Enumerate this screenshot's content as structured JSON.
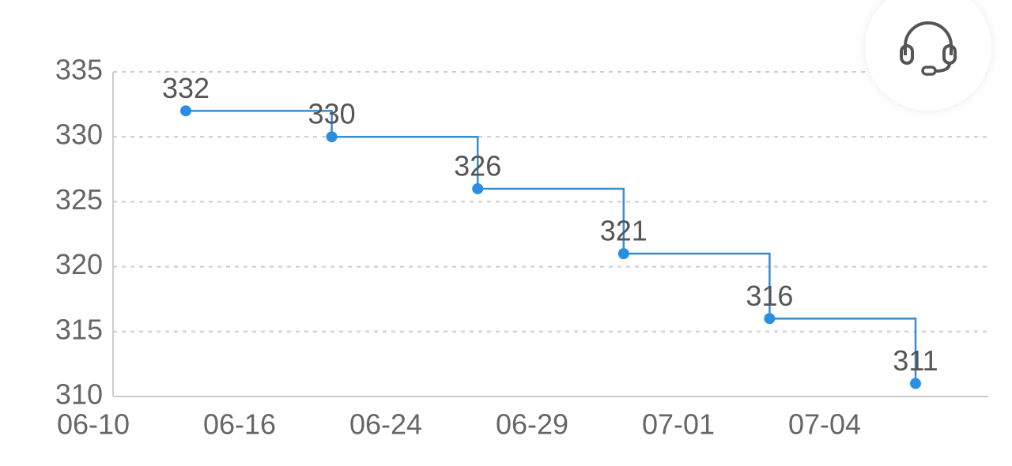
{
  "chart_data": {
    "type": "line",
    "step": "post",
    "categories": [
      "06-10",
      "06-16",
      "06-24",
      "06-29",
      "07-01",
      "07-04"
    ],
    "values": [
      332,
      330,
      326,
      321,
      316,
      311
    ],
    "color": "#2a8fe0",
    "line_color": "#3a8dcc",
    "ylim": [
      310,
      335
    ],
    "yticks": [
      310,
      315,
      320,
      325,
      330,
      335
    ],
    "grid": true
  }
}
